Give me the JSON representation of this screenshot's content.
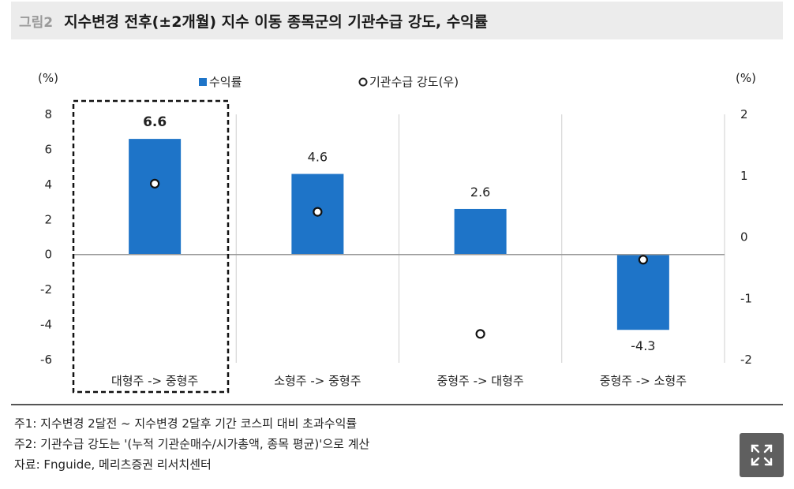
{
  "header": {
    "figure_number": "그림2",
    "title": "지수변경 전후(±2개월) 지수 이동 종목군의 기관수급 강도, 수익률"
  },
  "chart_data": {
    "type": "bar",
    "categories": [
      "대형주 -> 중형주",
      "소형주 -> 중형주",
      "중형주 -> 대형주",
      "중형주 -> 소형주"
    ],
    "series": [
      {
        "name": "수익률",
        "kind": "bar",
        "axis": "left",
        "values": [
          6.6,
          4.6,
          2.6,
          -4.3
        ],
        "labels": [
          "6.6",
          "4.6",
          "2.6",
          "-4.3"
        ],
        "color": "#1e74c8"
      },
      {
        "name": "기관수급 강도(우)",
        "kind": "scatter",
        "axis": "right",
        "values": [
          0.87,
          0.41,
          -1.58,
          -0.37
        ],
        "color": "#ffffff"
      }
    ],
    "y_left": {
      "unit": "(%)",
      "min": -6,
      "max": 8,
      "ticks": [
        "8",
        "6",
        "4",
        "2",
        "0",
        "-2",
        "-4",
        "-6"
      ],
      "tick_values": [
        8,
        6,
        4,
        2,
        0,
        -2,
        -4,
        -6
      ]
    },
    "y_right": {
      "unit": "(%)",
      "min": -2,
      "max": 2,
      "ticks": [
        "2",
        "1",
        "0",
        "-1",
        "-2"
      ],
      "tick_values": [
        2,
        1,
        0,
        -1,
        -2
      ]
    },
    "highlight_category": 0,
    "legend_position": "top-center"
  },
  "notes": [
    "주1: 지수변경 2달전 ~ 지수변경 2달후 기간 코스피 대비 초과수익률",
    "주2: 기관수급 강도는 '(누적 기관순매수/시가총액, 종목 평균)'으로 계산",
    "자료: Fnguide, 메리츠증권 리서치센터"
  ],
  "controls": {
    "expand_icon": "expand-icon"
  }
}
